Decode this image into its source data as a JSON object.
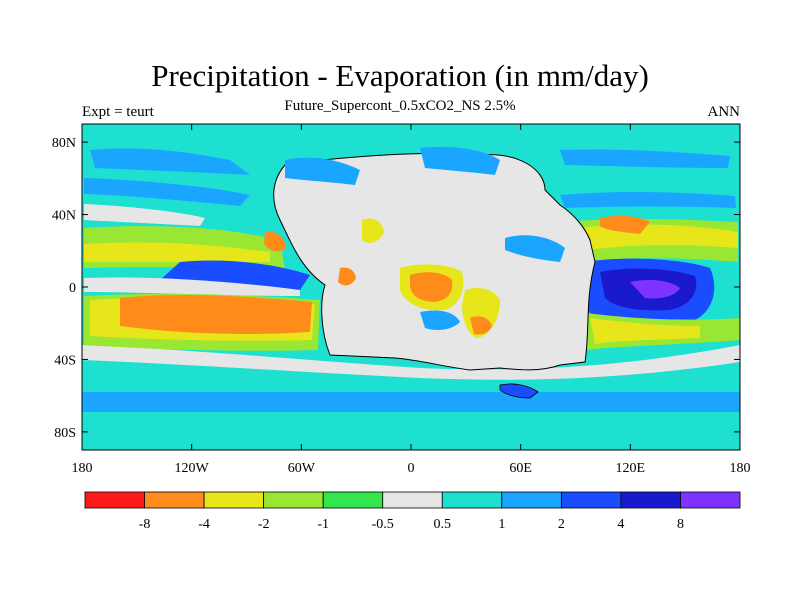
{
  "title": "Precipitation - Evaporation (in mm/day)",
  "subtitle": "Future_Supercont_0.5xCO2_NS 2.5%",
  "left_string": "Expt = teurt",
  "right_string": "ANN",
  "colors": {
    "ocean_base": "#1ee0d0",
    "land": "#e6e6e6",
    "coastline": "#000000"
  },
  "lat_ticks": [
    {
      "label": "80N",
      "lat": 80
    },
    {
      "label": "40N",
      "lat": 40
    },
    {
      "label": "0",
      "lat": 0
    },
    {
      "label": "40S",
      "lat": -40
    },
    {
      "label": "80S",
      "lat": -80
    }
  ],
  "lon_ticks": [
    {
      "label": "180",
      "lon": -180
    },
    {
      "label": "120W",
      "lon": -120
    },
    {
      "label": "60W",
      "lon": -60
    },
    {
      "label": "0",
      "lon": 0
    },
    {
      "label": "60E",
      "lon": 60
    },
    {
      "label": "120E",
      "lon": 120
    },
    {
      "label": "180",
      "lon": 180
    }
  ],
  "colorbar": {
    "colors": [
      "#ff1a1a",
      "#ff8c1a",
      "#e6e61a",
      "#99e633",
      "#33e64d",
      "#e6e6e6",
      "#1ee0d0",
      "#1aa6ff",
      "#1a4dff",
      "#1a1acc",
      "#7f33ff"
    ],
    "labels": [
      "-8",
      "-4",
      "-2",
      "-1",
      "-0.5",
      "0.5",
      "1",
      "2",
      "4",
      "8"
    ]
  }
}
